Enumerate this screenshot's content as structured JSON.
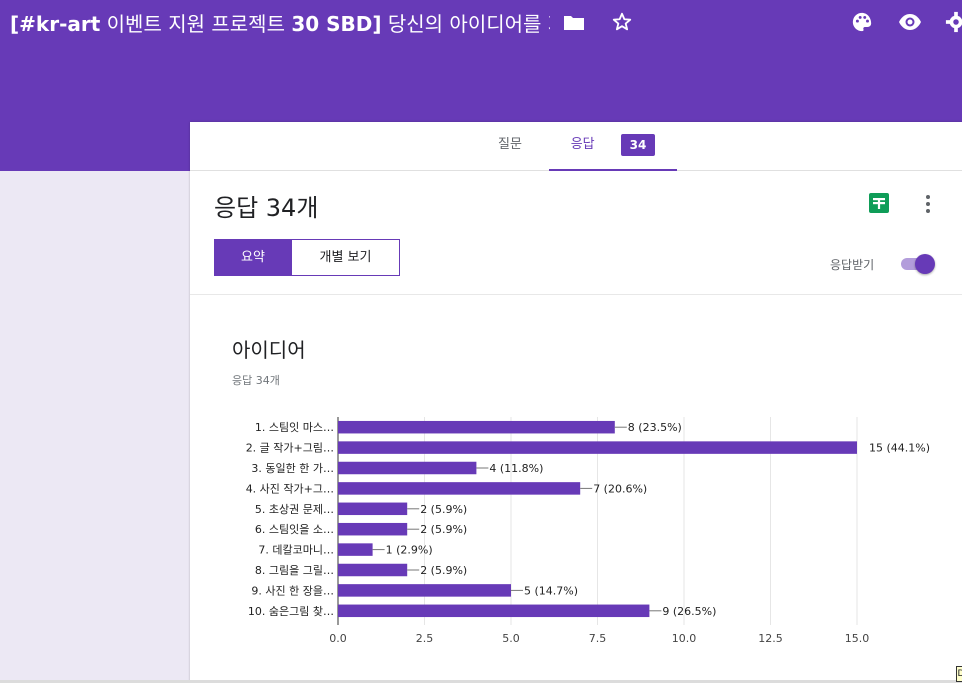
{
  "header": {
    "title_bold": "[#kr-art",
    "title_mid": " 이벤트 지원 프로젝트 ",
    "title_bold2": "30 SBD]",
    "title_rest": " 당신의 아이디어를 지원합니다",
    "icons": [
      "folder-icon",
      "star-icon",
      "palette-icon",
      "eye-icon",
      "gear-icon"
    ],
    "bar_color": "#673ab7"
  },
  "tabs": {
    "questions": "질문",
    "responses": "응답",
    "responses_badge": "34"
  },
  "summary": {
    "count_title": "응답 34개",
    "segments": {
      "summary": "요약",
      "individual": "개별 보기"
    },
    "accepting_label": "응답받기",
    "accepting_on": true
  },
  "question": {
    "title": "아이디어",
    "subtitle": "응답 34개"
  },
  "chart_data": {
    "type": "bar",
    "orientation": "horizontal",
    "categories": [
      "1. 스팀잇 마스…",
      "2. 글 작가+그림…",
      "3. 동일한 한 가…",
      "4. 사진 작가+그…",
      "5. 초상권 문제…",
      "6. 스팀잇을 소…",
      "7. 데칼코마니…",
      "8. 그림을 그릴…",
      "9. 사진 한 장을…",
      "10. 숨은그림 찾…"
    ],
    "values": [
      8,
      15,
      4,
      7,
      2,
      2,
      1,
      2,
      5,
      9
    ],
    "value_labels": [
      "8 (23.5%)",
      "15 (44.1%)",
      "4 (11.8%)",
      "7 (20.6%)",
      "2 (5.9%)",
      "2 (5.9%)",
      "1 (2.9%)",
      "2 (5.9%)",
      "5 (14.7%)",
      "9 (26.5%)"
    ],
    "xticks": [
      "0.0",
      "2.5",
      "5.0",
      "7.5",
      "10.0",
      "12.5",
      "15.0"
    ],
    "xlim": [
      0,
      15
    ],
    "grid": true,
    "color": "#673ab7"
  }
}
